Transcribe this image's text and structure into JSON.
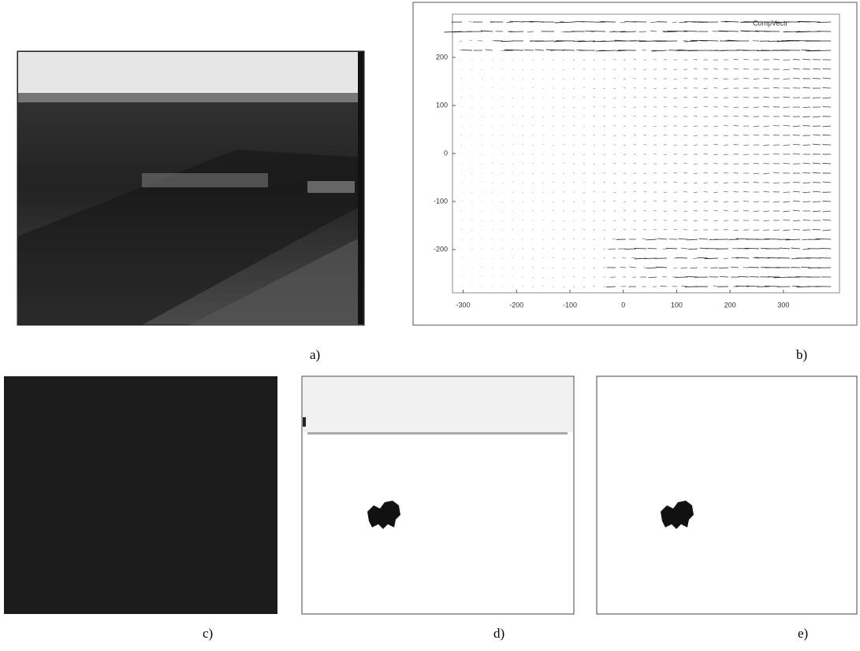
{
  "panels": [
    {
      "label": "a)"
    },
    {
      "label": "b)"
    },
    {
      "label": "c)"
    },
    {
      "label": "d)"
    },
    {
      "label": "e)"
    }
  ],
  "quiver": {
    "legend": "CompVectr",
    "xlim": [
      -320,
      405
    ],
    "ylim": [
      -290,
      290
    ],
    "xticks": [
      -300,
      -200,
      -100,
      0,
      100,
      200,
      300
    ],
    "yticks": [
      -200,
      -100,
      0,
      100,
      200
    ]
  }
}
